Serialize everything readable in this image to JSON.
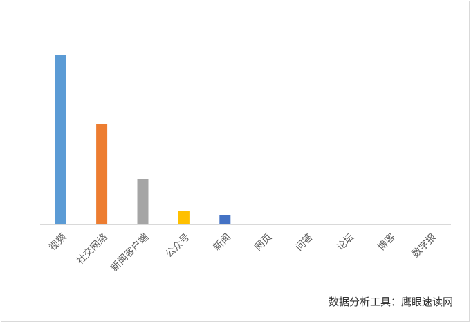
{
  "chart_data": {
    "type": "bar",
    "categories": [
      "视频",
      "社交网络",
      "新闻客户端",
      "公众号",
      "新闻",
      "网页",
      "问答",
      "论坛",
      "博客",
      "数字报"
    ],
    "values": [
      246,
      145,
      66,
      20,
      14,
      1,
      1,
      1,
      1,
      1
    ],
    "colors": [
      "#5b9bd5",
      "#ed7d31",
      "#a5a5a5",
      "#ffc000",
      "#4472c4",
      "#70ad47",
      "#255e91",
      "#9e480e",
      "#636363",
      "#997300"
    ],
    "source": "数据分析工具：鹰眼速读网"
  }
}
